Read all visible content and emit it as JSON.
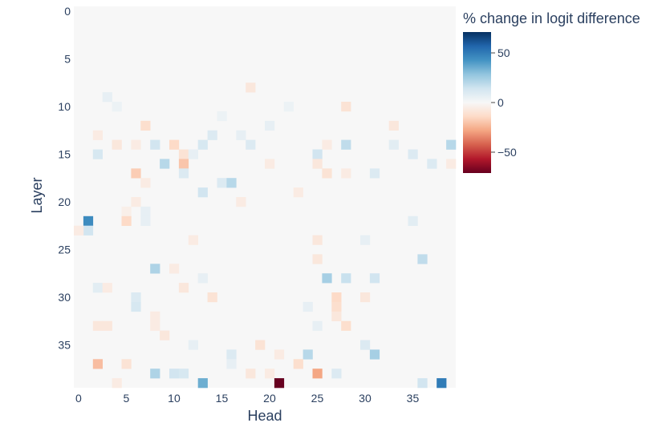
{
  "chart_data": {
    "type": "heatmap",
    "title": "",
    "xlabel": "Head",
    "ylabel": "Layer",
    "x_range": [
      0,
      39
    ],
    "y_range": [
      0,
      39
    ],
    "y_reversed": true,
    "x_ticks": [
      0,
      5,
      10,
      15,
      20,
      25,
      30,
      35
    ],
    "y_ticks": [
      0,
      5,
      10,
      15,
      20,
      25,
      30,
      35
    ],
    "colorbar": {
      "title": "% change in logit difference",
      "ticks": [
        50,
        0,
        -50
      ],
      "tick_labels": [
        "50",
        "0",
        "−50"
      ],
      "range": [
        -71,
        71
      ],
      "colorscale": "RdBu",
      "colors": [
        "#67001f",
        "#b2182b",
        "#d6604d",
        "#f4a582",
        "#fddbc7",
        "#f7f7f7",
        "#d1e5f0",
        "#92c5de",
        "#4393c3",
        "#2166ac",
        "#053061"
      ]
    },
    "background_value": 0,
    "cells": [
      {
        "layer": 8,
        "head": 18,
        "value": -8
      },
      {
        "layer": 9,
        "head": 3,
        "value": 6
      },
      {
        "layer": 10,
        "head": 4,
        "value": 4
      },
      {
        "layer": 10,
        "head": 28,
        "value": -10
      },
      {
        "layer": 10,
        "head": 22,
        "value": 4
      },
      {
        "layer": 11,
        "head": 15,
        "value": 4
      },
      {
        "layer": 12,
        "head": 7,
        "value": -12
      },
      {
        "layer": 12,
        "head": 33,
        "value": -8
      },
      {
        "layer": 12,
        "head": 20,
        "value": 6
      },
      {
        "layer": 13,
        "head": 17,
        "value": 6
      },
      {
        "layer": 13,
        "head": 14,
        "value": 10
      },
      {
        "layer": 13,
        "head": 2,
        "value": -6
      },
      {
        "layer": 14,
        "head": 4,
        "value": -8
      },
      {
        "layer": 14,
        "head": 6,
        "value": -6
      },
      {
        "layer": 14,
        "head": 8,
        "value": 14
      },
      {
        "layer": 14,
        "head": 10,
        "value": -14
      },
      {
        "layer": 14,
        "head": 13,
        "value": 12
      },
      {
        "layer": 14,
        "head": 18,
        "value": 10
      },
      {
        "layer": 14,
        "head": 26,
        "value": -6
      },
      {
        "layer": 14,
        "head": 28,
        "value": 18
      },
      {
        "layer": 14,
        "head": 39,
        "value": 20
      },
      {
        "layer": 14,
        "head": 33,
        "value": 8
      },
      {
        "layer": 15,
        "head": 2,
        "value": 12
      },
      {
        "layer": 15,
        "head": 11,
        "value": -10
      },
      {
        "layer": 15,
        "head": 12,
        "value": 6
      },
      {
        "layer": 15,
        "head": 25,
        "value": 14
      },
      {
        "layer": 15,
        "head": 35,
        "value": 10
      },
      {
        "layer": 16,
        "head": 9,
        "value": 20
      },
      {
        "layer": 16,
        "head": 11,
        "value": -20
      },
      {
        "layer": 16,
        "head": 25,
        "value": -8
      },
      {
        "layer": 16,
        "head": 20,
        "value": -6
      },
      {
        "layer": 16,
        "head": 37,
        "value": 10
      },
      {
        "layer": 16,
        "head": 39,
        "value": -6
      },
      {
        "layer": 17,
        "head": 6,
        "value": -18
      },
      {
        "layer": 17,
        "head": 11,
        "value": 10
      },
      {
        "layer": 17,
        "head": 26,
        "value": -10
      },
      {
        "layer": 17,
        "head": 31,
        "value": 10
      },
      {
        "layer": 17,
        "head": 28,
        "value": -6
      },
      {
        "layer": 18,
        "head": 15,
        "value": 10
      },
      {
        "layer": 18,
        "head": 16,
        "value": 20
      },
      {
        "layer": 18,
        "head": 7,
        "value": -6
      },
      {
        "layer": 19,
        "head": 13,
        "value": 14
      },
      {
        "layer": 19,
        "head": 23,
        "value": -6
      },
      {
        "layer": 20,
        "head": 6,
        "value": -6
      },
      {
        "layer": 20,
        "head": 17,
        "value": -6
      },
      {
        "layer": 21,
        "head": 7,
        "value": 6
      },
      {
        "layer": 21,
        "head": 5,
        "value": -4
      },
      {
        "layer": 22,
        "head": 1,
        "value": 45
      },
      {
        "layer": 22,
        "head": 5,
        "value": -14
      },
      {
        "layer": 22,
        "head": 7,
        "value": 6
      },
      {
        "layer": 22,
        "head": 35,
        "value": 8
      },
      {
        "layer": 23,
        "head": 1,
        "value": 14
      },
      {
        "layer": 23,
        "head": 0,
        "value": -6
      },
      {
        "layer": 24,
        "head": 12,
        "value": -6
      },
      {
        "layer": 24,
        "head": 25,
        "value": -8
      },
      {
        "layer": 24,
        "head": 30,
        "value": 6
      },
      {
        "layer": 26,
        "head": 36,
        "value": 18
      },
      {
        "layer": 26,
        "head": 25,
        "value": -8
      },
      {
        "layer": 27,
        "head": 8,
        "value": 22
      },
      {
        "layer": 27,
        "head": 10,
        "value": -6
      },
      {
        "layer": 28,
        "head": 26,
        "value": 24
      },
      {
        "layer": 28,
        "head": 28,
        "value": 16
      },
      {
        "layer": 28,
        "head": 31,
        "value": 14
      },
      {
        "layer": 28,
        "head": 13,
        "value": 6
      },
      {
        "layer": 29,
        "head": 2,
        "value": 8
      },
      {
        "layer": 29,
        "head": 3,
        "value": -6
      },
      {
        "layer": 29,
        "head": 11,
        "value": -8
      },
      {
        "layer": 30,
        "head": 6,
        "value": 10
      },
      {
        "layer": 30,
        "head": 14,
        "value": -10
      },
      {
        "layer": 30,
        "head": 27,
        "value": -14
      },
      {
        "layer": 30,
        "head": 30,
        "value": -8
      },
      {
        "layer": 31,
        "head": 6,
        "value": 12
      },
      {
        "layer": 31,
        "head": 27,
        "value": -12
      },
      {
        "layer": 31,
        "head": 24,
        "value": 6
      },
      {
        "layer": 32,
        "head": 8,
        "value": -6
      },
      {
        "layer": 32,
        "head": 27,
        "value": -8
      },
      {
        "layer": 33,
        "head": 2,
        "value": -8
      },
      {
        "layer": 33,
        "head": 3,
        "value": -8
      },
      {
        "layer": 33,
        "head": 8,
        "value": -6
      },
      {
        "layer": 33,
        "head": 28,
        "value": -12
      },
      {
        "layer": 33,
        "head": 25,
        "value": 6
      },
      {
        "layer": 34,
        "head": 9,
        "value": -8
      },
      {
        "layer": 35,
        "head": 19,
        "value": -10
      },
      {
        "layer": 35,
        "head": 30,
        "value": 10
      },
      {
        "layer": 35,
        "head": 12,
        "value": 6
      },
      {
        "layer": 36,
        "head": 16,
        "value": 10
      },
      {
        "layer": 36,
        "head": 24,
        "value": 20
      },
      {
        "layer": 36,
        "head": 31,
        "value": 24
      },
      {
        "layer": 36,
        "head": 21,
        "value": -6
      },
      {
        "layer": 37,
        "head": 2,
        "value": -22
      },
      {
        "layer": 37,
        "head": 5,
        "value": -10
      },
      {
        "layer": 37,
        "head": 23,
        "value": -12
      },
      {
        "layer": 37,
        "head": 16,
        "value": 6
      },
      {
        "layer": 38,
        "head": 8,
        "value": 22
      },
      {
        "layer": 38,
        "head": 10,
        "value": 14
      },
      {
        "layer": 38,
        "head": 11,
        "value": 12
      },
      {
        "layer": 38,
        "head": 20,
        "value": -6
      },
      {
        "layer": 38,
        "head": 25,
        "value": -28
      },
      {
        "layer": 38,
        "head": 27,
        "value": 10
      },
      {
        "layer": 38,
        "head": 18,
        "value": -8
      },
      {
        "layer": 39,
        "head": 13,
        "value": 35
      },
      {
        "layer": 39,
        "head": 21,
        "value": -71
      },
      {
        "layer": 39,
        "head": 36,
        "value": 14
      },
      {
        "layer": 39,
        "head": 38,
        "value": 50
      },
      {
        "layer": 39,
        "head": 4,
        "value": -6
      }
    ]
  }
}
